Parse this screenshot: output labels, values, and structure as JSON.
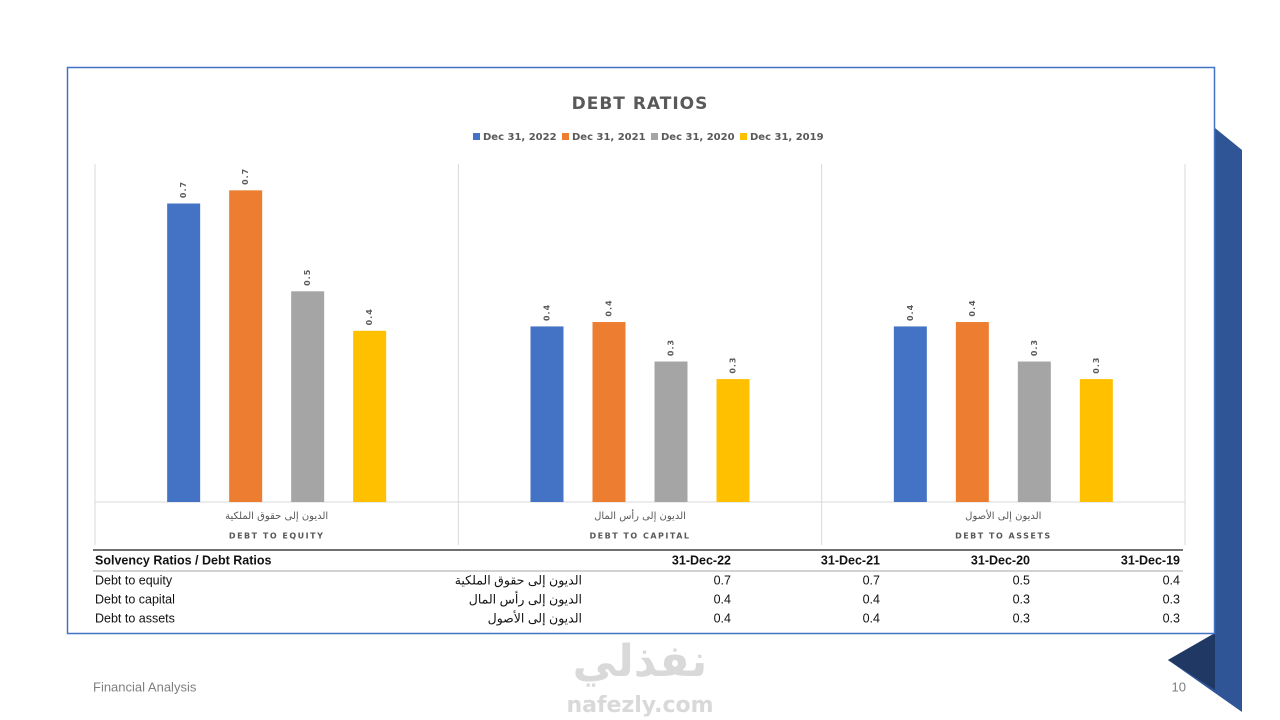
{
  "chart_data": {
    "type": "bar",
    "title": "DEBT RATIOS",
    "categories": [
      "DEBT TO EQUITY",
      "DEBT TO CAPITAL",
      "DEBT TO ASSETS"
    ],
    "category_labels_ar": [
      "الديون إلى حقوق الملكية",
      "الديون إلى رأس المال",
      "الديون إلى الأصول"
    ],
    "series": [
      {
        "name": "Dec 31, 2022",
        "color": "#4472c4",
        "values": [
          0.68,
          0.4,
          0.4
        ],
        "value_labels": [
          "0.7",
          "0.4",
          "0.4"
        ]
      },
      {
        "name": "Dec 31, 2021",
        "color": "#ed7d31",
        "values": [
          0.71,
          0.41,
          0.41
        ],
        "value_labels": [
          "0.7",
          "0.4",
          "0.4"
        ]
      },
      {
        "name": "Dec 31, 2020",
        "color": "#a5a5a5",
        "values": [
          0.48,
          0.32,
          0.32
        ],
        "value_labels": [
          "0.5",
          "0.3",
          "0.3"
        ]
      },
      {
        "name": "Dec 31, 2019",
        "color": "#ffc000",
        "values": [
          0.39,
          0.28,
          0.28
        ],
        "value_labels": [
          "0.4",
          "0.3",
          "0.3"
        ]
      }
    ],
    "ylim": [
      0,
      0.77
    ],
    "legend": "top"
  },
  "table": {
    "header": [
      "Solvency Ratios / Debt Ratios",
      "31-Dec-22",
      "31-Dec-21",
      "31-Dec-20",
      "31-Dec-19"
    ],
    "rows": [
      [
        "Debt to equity",
        "الديون إلى حقوق الملكية",
        0.7,
        0.7,
        0.5,
        0.4
      ],
      [
        "Debt to capital",
        "الديون إلى رأس المال",
        0.4,
        0.4,
        0.3,
        0.3
      ],
      [
        "Debt to assets",
        "الديون إلى الأصول",
        0.4,
        0.4,
        0.3,
        0.3
      ]
    ]
  },
  "footer": {
    "left": "Financial Analysis",
    "page": "10"
  },
  "watermark": {
    "arabic": "نفذلي",
    "latin": "nafezly.com"
  }
}
